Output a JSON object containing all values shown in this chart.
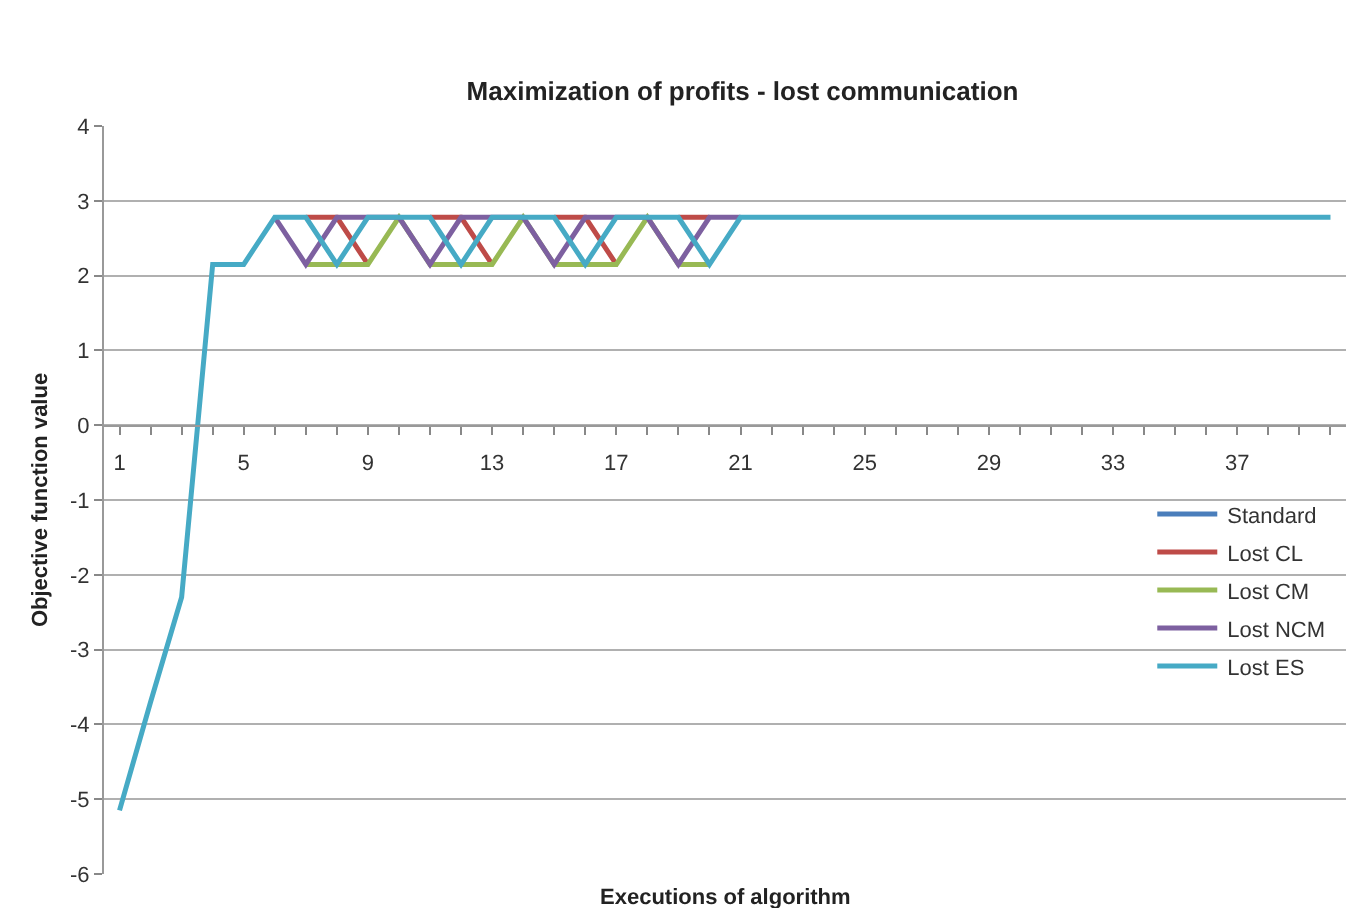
{
  "chart_data": {
    "type": "line",
    "title": "Maximization of profits - lost communication",
    "xlabel": "Executions of algorithm",
    "ylabel": "Objective function value",
    "categories": [
      "1",
      null,
      null,
      null,
      "5",
      null,
      null,
      null,
      "9",
      null,
      null,
      null,
      "13",
      null,
      null,
      null,
      "17",
      null,
      null,
      null,
      "21",
      null,
      null,
      null,
      "25",
      null,
      null,
      null,
      "29",
      null,
      null,
      null,
      "33",
      null,
      null,
      null,
      "37",
      null,
      null,
      null
    ],
    "series": [
      {
        "name": "Standard",
        "color": "#4a7ebb",
        "values": [
          null,
          null,
          null,
          null,
          null,
          null,
          null,
          null,
          null,
          null,
          null,
          null,
          null,
          null,
          null,
          null,
          null,
          null,
          null,
          null,
          null,
          null,
          null,
          null,
          null,
          null,
          null,
          null,
          null,
          null,
          null,
          null,
          null,
          null,
          null,
          null,
          null,
          null,
          null,
          null
        ]
      },
      {
        "name": "Lost CL",
        "color": "#be4b48",
        "values": [
          null,
          null,
          null,
          null,
          null,
          null,
          2.78,
          2.78,
          2.15,
          null,
          2.78,
          2.78,
          2.15,
          null,
          2.78,
          2.78,
          2.15,
          null,
          2.78,
          2.78,
          null,
          null,
          null,
          null,
          null,
          null,
          null,
          null,
          null,
          null,
          null,
          null,
          null,
          null,
          null,
          null,
          null,
          null,
          null,
          null
        ]
      },
      {
        "name": "Lost CM",
        "color": "#98b954",
        "values": [
          null,
          null,
          null,
          null,
          null,
          null,
          2.15,
          2.15,
          2.15,
          2.78,
          2.15,
          2.15,
          2.15,
          2.78,
          2.15,
          2.15,
          2.15,
          2.78,
          2.15,
          2.15,
          null,
          null,
          null,
          null,
          null,
          null,
          null,
          null,
          null,
          null,
          null,
          null,
          null,
          null,
          null,
          null,
          null,
          null,
          null,
          null
        ]
      },
      {
        "name": "Lost NCM",
        "color": "#7d60a0",
        "values": [
          null,
          null,
          null,
          null,
          null,
          2.78,
          2.15,
          2.78,
          2.78,
          2.78,
          2.15,
          2.78,
          2.78,
          2.78,
          2.15,
          2.78,
          2.78,
          2.78,
          2.15,
          2.78,
          2.78,
          null,
          null,
          null,
          null,
          null,
          null,
          null,
          null,
          null,
          null,
          null,
          null,
          null,
          null,
          null,
          null,
          null,
          null,
          null
        ]
      },
      {
        "name": "Lost ES",
        "color": "#46aac5",
        "values": [
          -5.15,
          -3.7,
          -2.3,
          2.15,
          2.15,
          2.78,
          2.78,
          2.15,
          2.78,
          2.78,
          2.78,
          2.15,
          2.78,
          2.78,
          2.78,
          2.15,
          2.78,
          2.78,
          2.78,
          2.15,
          2.78,
          2.78,
          2.78,
          2.78,
          2.78,
          2.78,
          2.78,
          2.78,
          2.78,
          2.78,
          2.78,
          2.78,
          2.78,
          2.78,
          2.78,
          2.78,
          2.78,
          2.78,
          2.78,
          2.78
        ]
      }
    ],
    "ylim": [
      -6,
      4
    ],
    "yticks": [
      -6,
      -5,
      -4,
      -3,
      -2,
      -1,
      0,
      1,
      2,
      3,
      4
    ],
    "grid": "y",
    "legend": "right",
    "marker": "none",
    "line_style": "solid"
  }
}
